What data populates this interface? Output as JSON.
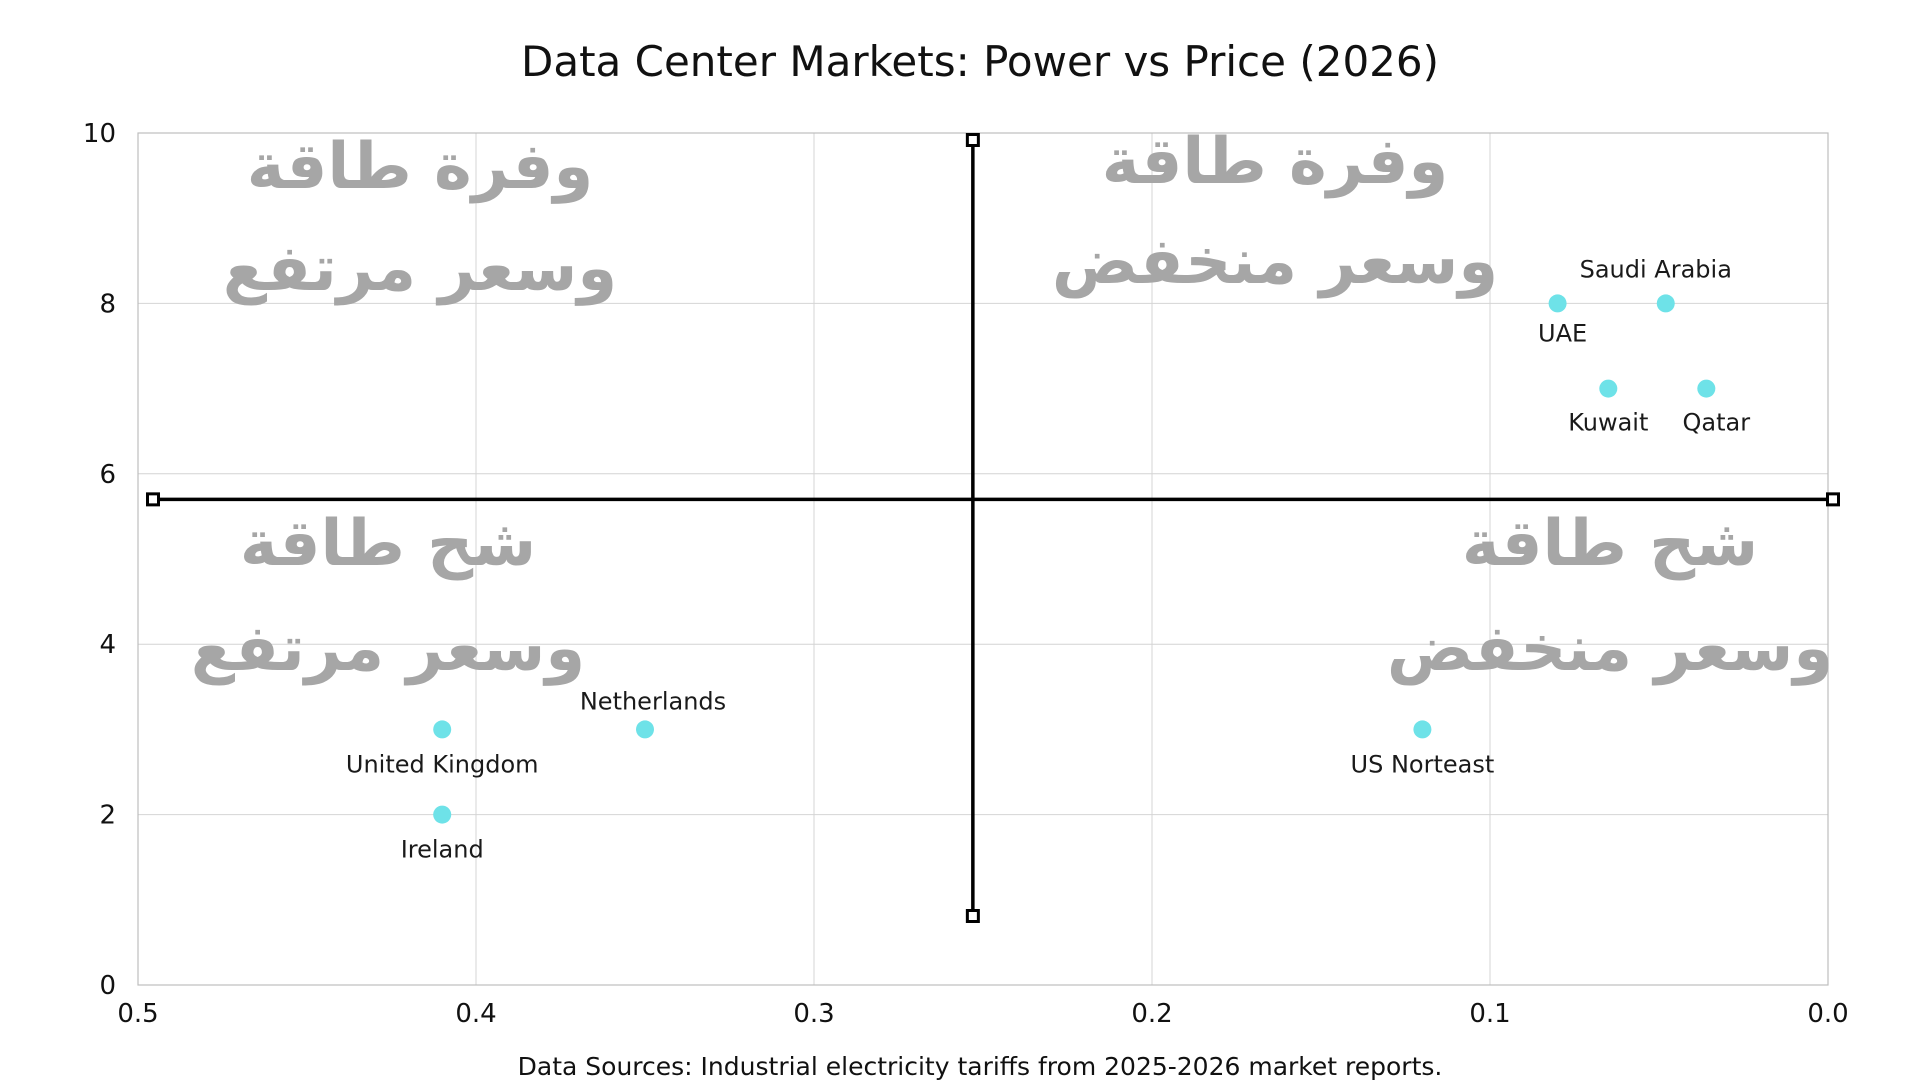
{
  "chart_data": {
    "type": "scatter",
    "title": "Data Center Markets: Power vs Price (2026)",
    "xlabel": "",
    "ylabel": "",
    "xlim": [
      0.5,
      0.0
    ],
    "ylim": [
      0,
      10
    ],
    "x_reversed": true,
    "x_ticks": [
      "0.5",
      "0.4",
      "0.3",
      "0.2",
      "0.1",
      "0.0"
    ],
    "y_ticks": [
      "0",
      "2",
      "4",
      "6",
      "8",
      "10"
    ],
    "grid": true,
    "marker_color": "#6ee2e8",
    "divider_x": 0.253,
    "divider_y": 5.7,
    "points": [
      {
        "label": "Saudi Arabia",
        "x": 0.048,
        "y": 8
      },
      {
        "label": "UAE",
        "x": 0.08,
        "y": 8
      },
      {
        "label": "Kuwait",
        "x": 0.065,
        "y": 7
      },
      {
        "label": "Qatar",
        "x": 0.036,
        "y": 7
      },
      {
        "label": "United Kingdom",
        "x": 0.41,
        "y": 3
      },
      {
        "label": "Netherlands",
        "x": 0.35,
        "y": 3
      },
      {
        "label": "Ireland",
        "x": 0.41,
        "y": 2
      },
      {
        "label": "US Norteast",
        "x": 0.12,
        "y": 3
      }
    ],
    "quadrant_labels": {
      "top_left": [
        "وفرة طاقة",
        "وسعر مرتفع"
      ],
      "top_right": [
        "وفرة طاقة",
        "وسعر منخفض"
      ],
      "bottom_left": [
        "شح طاقة",
        "وسعر مرتفع"
      ],
      "bottom_right": [
        "شح طاقة",
        "وسعر منخفض"
      ]
    },
    "annotations": [
      "Data Sources: Industrial electricity tariffs from 2025-2026 market reports."
    ]
  }
}
